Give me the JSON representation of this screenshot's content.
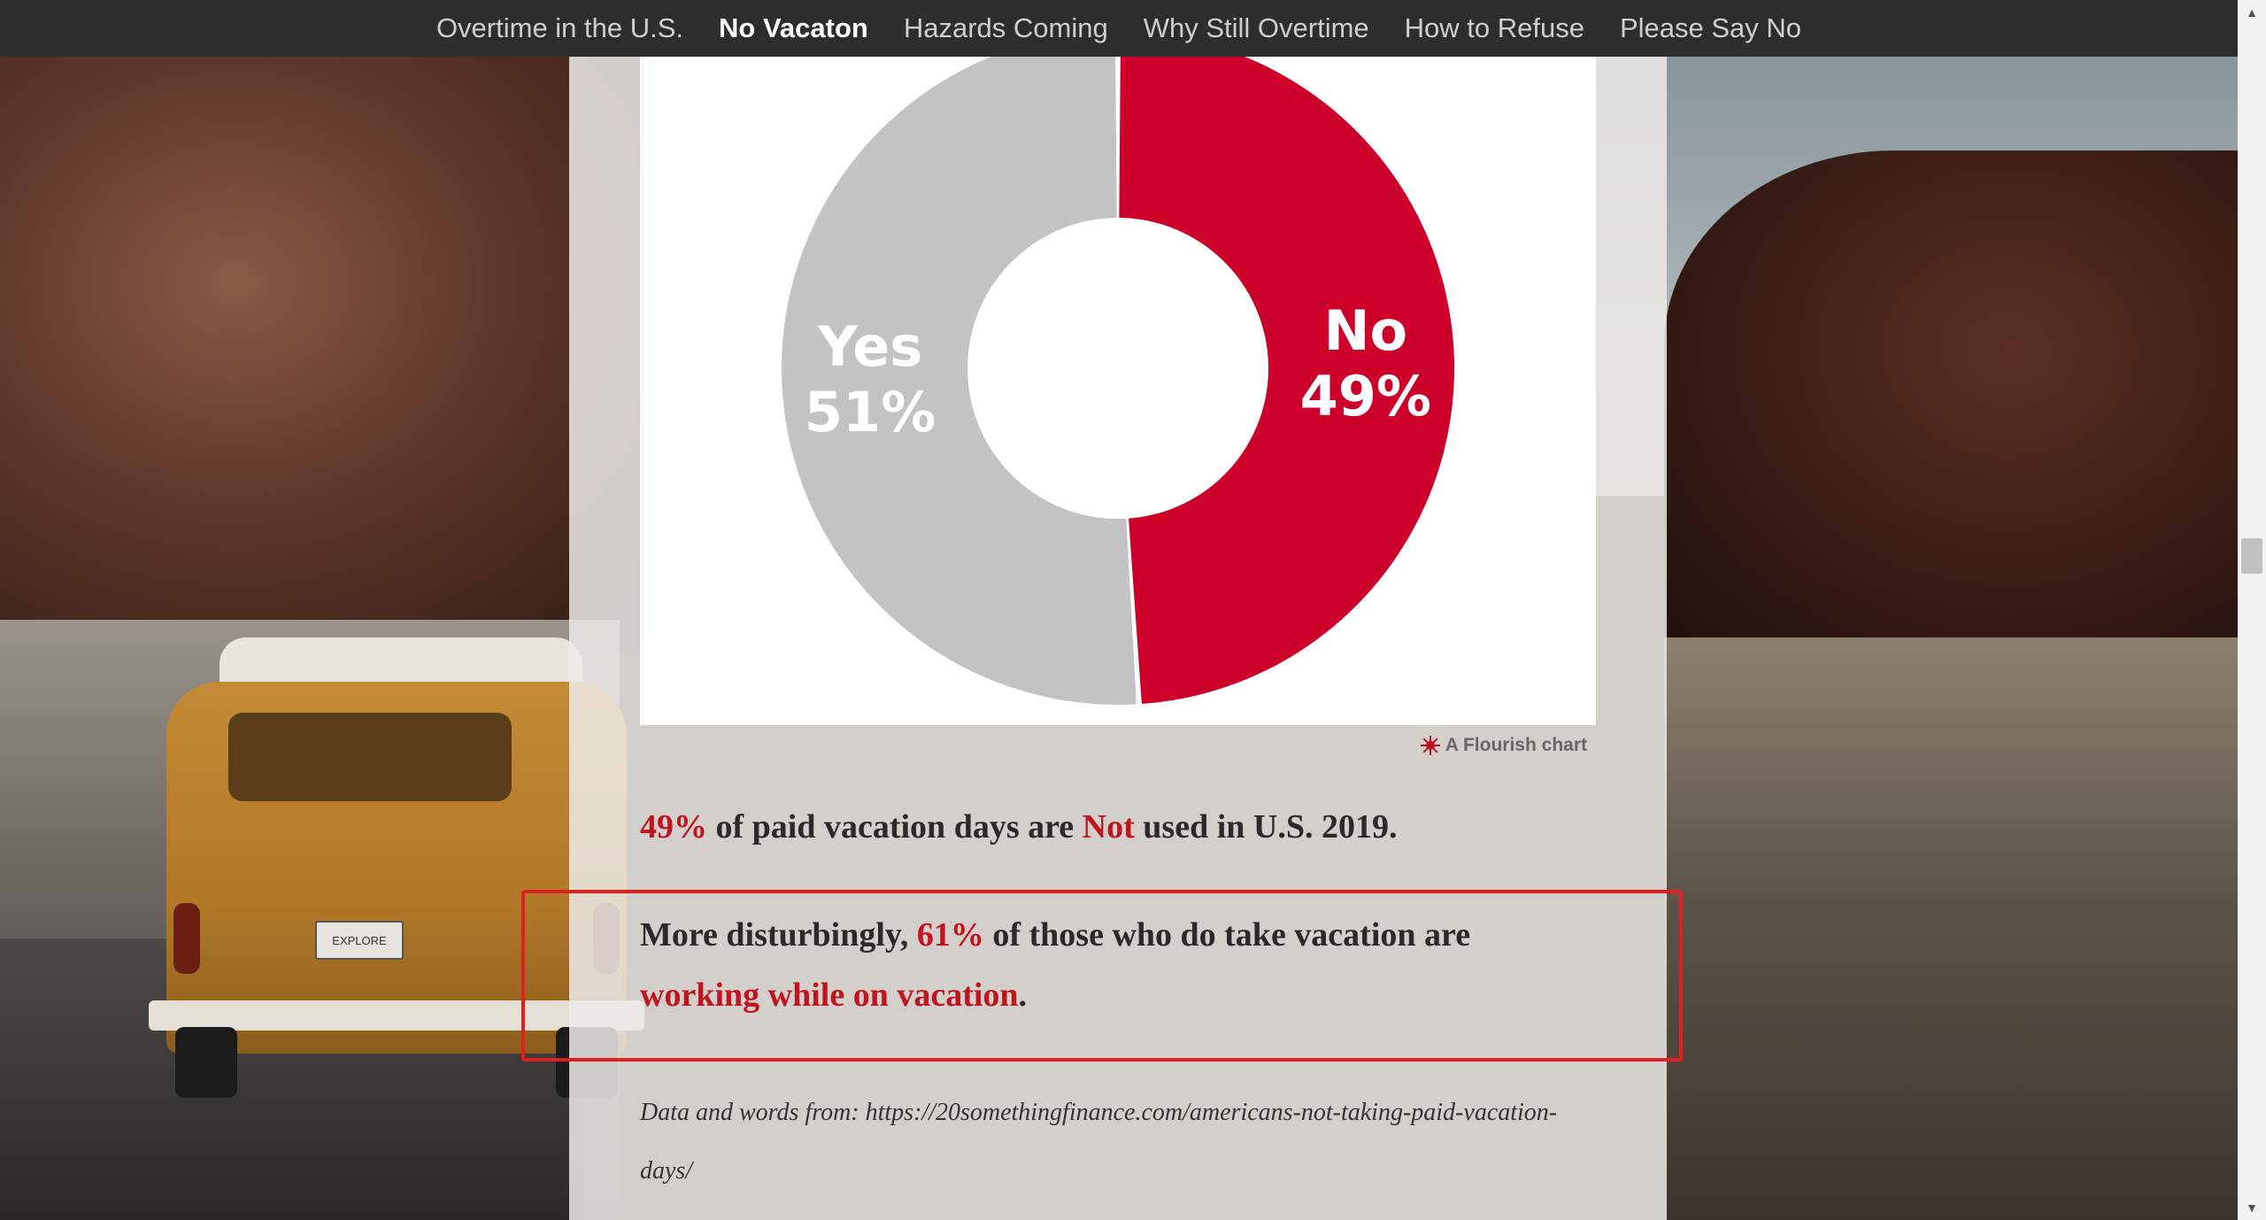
{
  "nav": {
    "items": [
      {
        "label": "Overtime in the U.S.",
        "active": false
      },
      {
        "label": "No Vacaton",
        "active": true
      },
      {
        "label": "Hazards Coming",
        "active": false
      },
      {
        "label": "Why Still Overtime",
        "active": false
      },
      {
        "label": "How to Refuse",
        "active": false
      },
      {
        "label": "Please Say No",
        "active": false
      }
    ]
  },
  "chart_data": {
    "type": "pie",
    "donut": true,
    "categories": [
      "No",
      "Yes"
    ],
    "values": [
      49,
      51
    ],
    "labels": [
      {
        "name": "No",
        "value_text": "49%"
      },
      {
        "name": "Yes",
        "value_text": "51%"
      }
    ],
    "colors": {
      "No": "#cc0029",
      "Yes": "#c2c3c3"
    }
  },
  "flourish": {
    "label": "A Flourish chart",
    "icon": "flourish-icon"
  },
  "paragraph1": {
    "pct": "49%",
    "text_a": " of paid vacation days are ",
    "not": "Not",
    "text_b": " used in U.S. 2019."
  },
  "paragraph2": {
    "text_a": "More disturbingly, ",
    "pct": "61%",
    "text_b": " of those who do take vacation are ",
    "highlight": "working while on vacation",
    "text_c": "."
  },
  "source": {
    "text": "Data and words from: https://20somethingfinance.com/americans-not-taking-paid-vacation-days/"
  },
  "background": {
    "plate": "EXPLORE"
  },
  "scrollbar": {
    "up": "▲",
    "down": "▼"
  },
  "colors": {
    "accent": "#c0141f",
    "box": "#e0201f"
  }
}
